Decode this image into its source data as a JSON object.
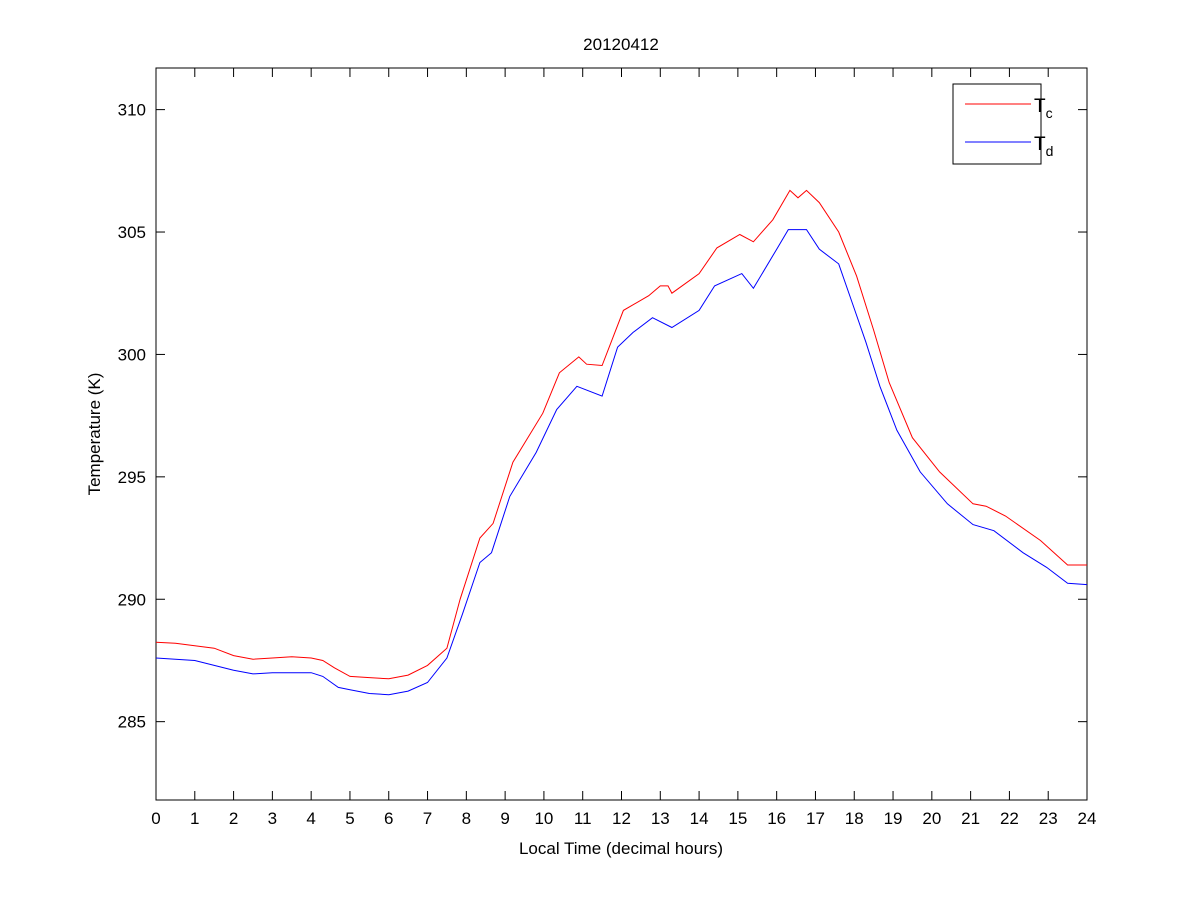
{
  "chart_data": {
    "type": "line",
    "title": "20120412",
    "xlabel": "Local Time (decimal hours)",
    "ylabel": "Temperature (K)",
    "xlim": [
      0,
      24
    ],
    "ylim": [
      281.8,
      311.7
    ],
    "xticks": [
      0,
      1,
      2,
      3,
      4,
      5,
      6,
      7,
      8,
      9,
      10,
      11,
      12,
      13,
      14,
      15,
      16,
      17,
      18,
      19,
      20,
      21,
      22,
      23,
      24
    ],
    "yticks": [
      285,
      290,
      295,
      300,
      305,
      310
    ],
    "grid": false,
    "legend_position": "top-right",
    "series": [
      {
        "name": "T_c",
        "label_main": "T",
        "label_sub": "c",
        "color": "#ff0000",
        "x": [
          0,
          0.5,
          1,
          1.5,
          2,
          2.5,
          3,
          3.5,
          4,
          4.3,
          4.6,
          5,
          5.5,
          6,
          6.5,
          7,
          7.5,
          7.84,
          8.35,
          8.69,
          9.2,
          9.97,
          10.4,
          10.9,
          11.1,
          11.5,
          12.05,
          12.7,
          13.0,
          13.2,
          13.3,
          14.0,
          14.46,
          15.05,
          15.4,
          15.9,
          16.34,
          16.55,
          16.77,
          17.1,
          17.6,
          18.06,
          18.5,
          18.9,
          19.5,
          20.2,
          21.06,
          21.4,
          21.9,
          22.8,
          23.5,
          24
        ],
        "y": [
          288.24,
          288.2,
          288.1,
          288.0,
          287.7,
          287.55,
          287.6,
          287.65,
          287.6,
          287.5,
          287.2,
          286.85,
          286.8,
          286.75,
          286.9,
          287.3,
          288.0,
          290.0,
          292.5,
          293.1,
          295.6,
          297.6,
          299.25,
          299.9,
          299.6,
          299.55,
          301.8,
          302.4,
          302.8,
          302.8,
          302.5,
          303.3,
          304.35,
          304.9,
          304.6,
          305.5,
          306.7,
          306.4,
          306.7,
          306.2,
          305.0,
          303.2,
          301.0,
          298.85,
          296.6,
          295.2,
          293.9,
          293.8,
          293.4,
          292.4,
          291.4,
          291.4
        ]
      },
      {
        "name": "T_d",
        "label_main": "T",
        "label_sub": "d",
        "color": "#0000ff",
        "x": [
          0,
          1,
          1.5,
          2,
          2.5,
          3,
          4,
          4.3,
          4.7,
          5,
          5.5,
          6,
          6.5,
          7,
          7.5,
          7.9,
          8.35,
          8.65,
          9.12,
          9.8,
          10.33,
          10.85,
          11.5,
          11.9,
          12.3,
          12.8,
          13.3,
          14.0,
          14.4,
          15.1,
          15.4,
          16.0,
          16.3,
          16.77,
          17.1,
          17.6,
          17.95,
          18.3,
          18.66,
          19.1,
          19.7,
          20.4,
          21.06,
          21.6,
          22.35,
          22.96,
          23.5,
          24
        ],
        "y": [
          287.6,
          287.5,
          287.3,
          287.1,
          286.95,
          287.0,
          287.0,
          286.85,
          286.4,
          286.3,
          286.15,
          286.1,
          286.25,
          286.6,
          287.6,
          289.4,
          291.5,
          291.9,
          294.2,
          296.0,
          297.75,
          298.7,
          298.3,
          300.3,
          300.9,
          301.5,
          301.1,
          301.8,
          302.8,
          303.3,
          302.7,
          304.3,
          305.1,
          305.1,
          304.3,
          303.7,
          302.1,
          300.5,
          298.7,
          296.9,
          295.2,
          293.9,
          293.05,
          292.8,
          291.9,
          291.3,
          290.65,
          290.6
        ]
      }
    ]
  }
}
